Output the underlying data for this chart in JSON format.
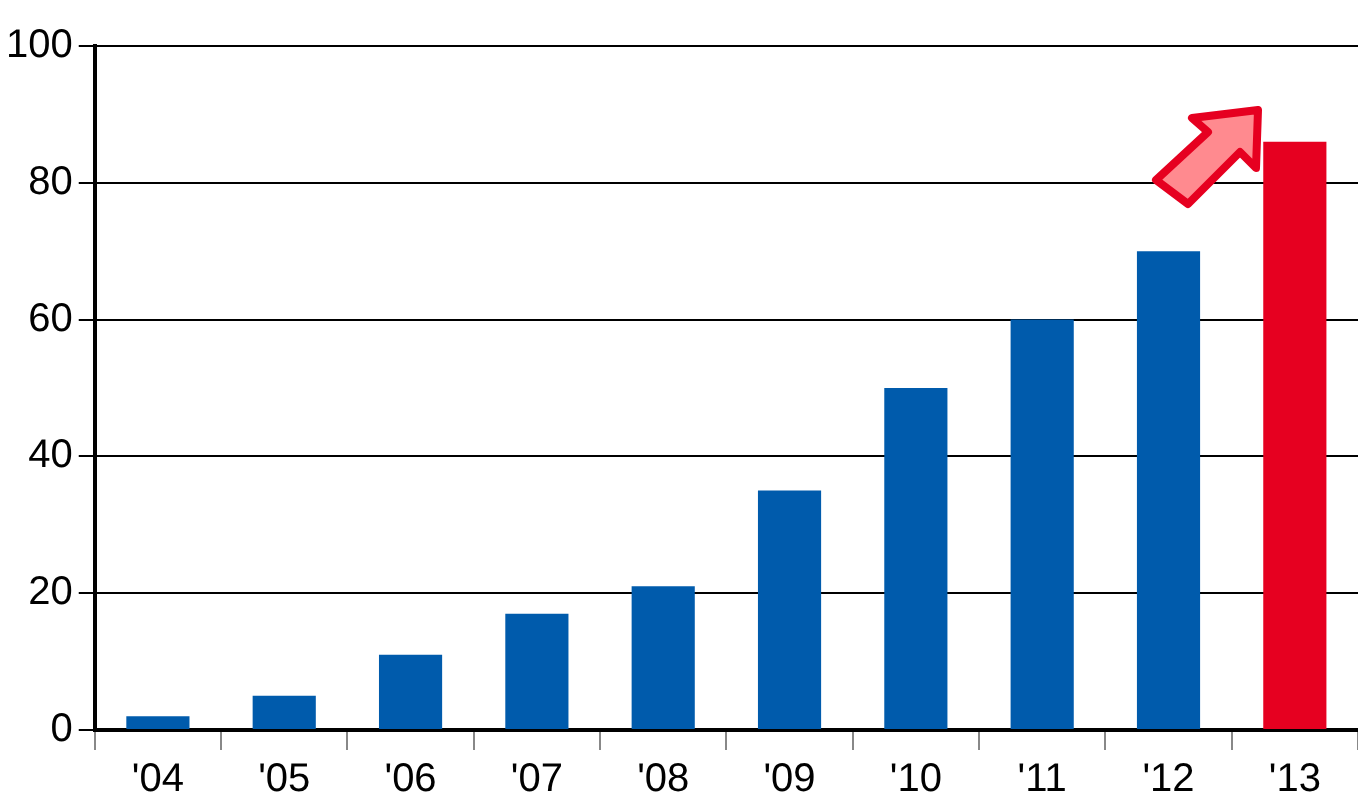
{
  "chart_data": {
    "type": "bar",
    "categories": [
      "'04",
      "'05",
      "'06",
      "'07",
      "'08",
      "'09",
      "'10",
      "'11",
      "'12",
      "'13"
    ],
    "values": [
      2,
      5,
      11,
      17,
      21,
      35,
      50,
      60,
      70,
      86
    ],
    "colors": [
      "#005bac",
      "#005bac",
      "#005bac",
      "#005bac",
      "#005bac",
      "#005bac",
      "#005bac",
      "#005bac",
      "#005bac",
      "#e60020"
    ],
    "ylim": [
      0,
      100
    ],
    "yticks": [
      0,
      20,
      40,
      60,
      80,
      100
    ],
    "grid": "y",
    "legend": false
  }
}
